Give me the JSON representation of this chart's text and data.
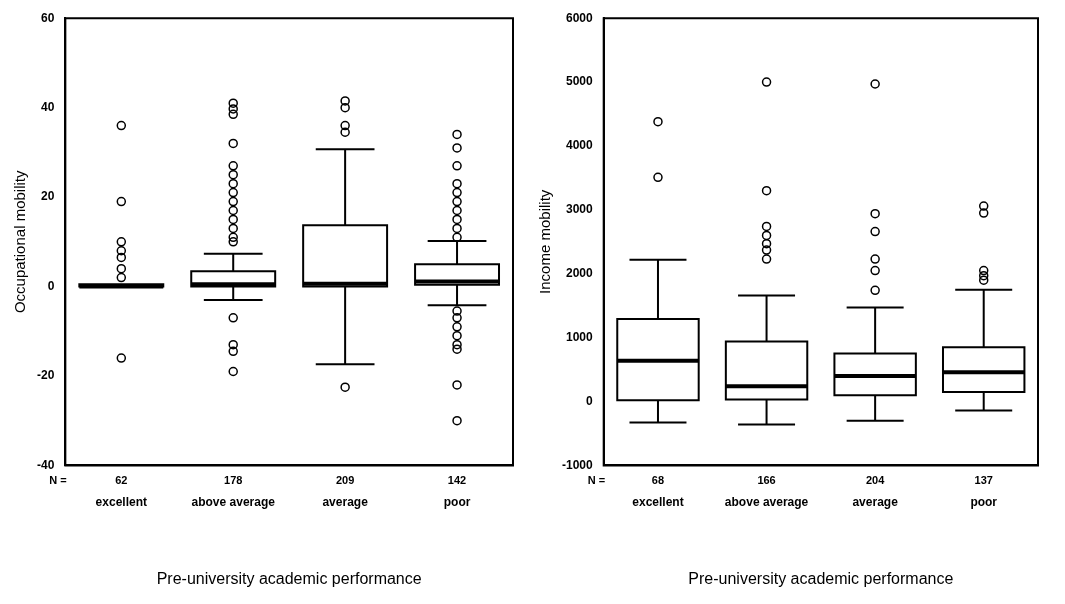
{
  "chart_data": [
    {
      "type": "box",
      "ylabel": "Occupational mobility",
      "xlabel": "Pre-university academic performance",
      "categories": [
        "excellent",
        "above average",
        "average",
        "poor"
      ],
      "ylim": [
        -40,
        60
      ],
      "yticks": [
        -40,
        -20,
        0,
        20,
        40,
        60
      ],
      "grid": false,
      "legend": false,
      "annotations": [
        "N =",
        "62",
        "178",
        "209",
        "142"
      ],
      "boxes": [
        {
          "low": 0,
          "q1": 0,
          "median": 0,
          "q3": 0.5,
          "high": 0,
          "outliers": [
            36,
            19,
            10,
            8,
            6.5,
            4,
            2,
            -16
          ]
        },
        {
          "low": -3,
          "q1": 0,
          "median": 0.5,
          "q3": 3.4,
          "high": 7.3,
          "outliers": [
            41,
            39.7,
            38.5,
            32,
            27,
            25,
            23,
            21,
            19,
            17,
            15,
            13,
            11,
            10,
            -7,
            -13,
            -14.5,
            -19
          ]
        },
        {
          "low": -17.4,
          "q1": 0,
          "median": 0.6,
          "q3": 13.7,
          "high": 30.7,
          "outliers": [
            41.5,
            40,
            36,
            34.5,
            -22.5
          ]
        },
        {
          "low": -4.2,
          "q1": 0.4,
          "median": 1.1,
          "q3": 5,
          "high": 10.2,
          "outliers": [
            34,
            31,
            27,
            23,
            21,
            19,
            17,
            15,
            13,
            11,
            -5.5,
            -7,
            -9,
            -11,
            -13,
            -14,
            -22,
            -30
          ]
        }
      ]
    },
    {
      "type": "box",
      "ylabel": "Income mobility",
      "xlabel": "Pre-university academic performance",
      "categories": [
        "excellent",
        "above average",
        "average",
        "poor"
      ],
      "ylim": [
        -1000,
        6000
      ],
      "yticks": [
        -1000,
        0,
        1000,
        2000,
        3000,
        4000,
        5000,
        6000
      ],
      "grid": false,
      "legend": false,
      "annotations": [
        "N =",
        "68",
        "166",
        "204",
        "137"
      ],
      "boxes": [
        {
          "low": -330,
          "q1": 20,
          "median": 640,
          "q3": 1290,
          "high": 2220,
          "outliers": [
            4380,
            3510
          ]
        },
        {
          "low": -360,
          "q1": 30,
          "median": 240,
          "q3": 940,
          "high": 1660,
          "outliers": [
            5000,
            3300,
            2740,
            2600,
            2470,
            2370,
            2230
          ]
        },
        {
          "low": -300,
          "q1": 100,
          "median": 400,
          "q3": 750,
          "high": 1470,
          "outliers": [
            4970,
            2940,
            2660,
            2230,
            2050,
            1740
          ]
        },
        {
          "low": -140,
          "q1": 150,
          "median": 460,
          "q3": 850,
          "high": 1750,
          "outliers": [
            3060,
            2950,
            2050,
            1970,
            1900
          ]
        }
      ]
    }
  ]
}
